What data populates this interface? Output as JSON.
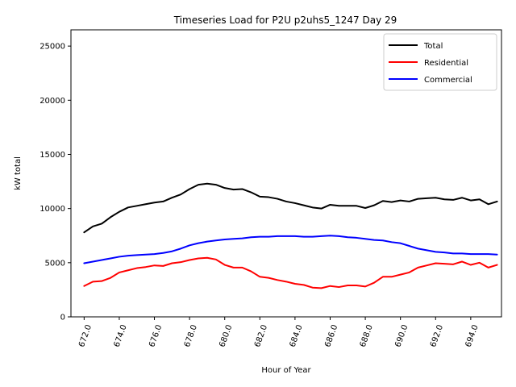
{
  "chart_data": {
    "type": "line",
    "title": "Timeseries Load for P2U p2uhs5_1247  Day 29",
    "xlabel": "Hour of Year",
    "ylabel": "kW total",
    "xlim": [
      671.25,
      695.75
    ],
    "ylim": [
      0,
      26500
    ],
    "xticks": [
      672,
      674,
      676,
      678,
      680,
      682,
      684,
      686,
      688,
      690,
      692,
      694
    ],
    "xtick_labels": [
      "672.0",
      "674.0",
      "676.0",
      "678.0",
      "680.0",
      "682.0",
      "684.0",
      "686.0",
      "688.0",
      "690.0",
      "692.0",
      "694.0"
    ],
    "yticks": [
      0,
      5000,
      10000,
      15000,
      20000,
      25000
    ],
    "ytick_labels": [
      "0",
      "5000",
      "10000",
      "15000",
      "20000",
      "25000"
    ],
    "legend_position": "top-right",
    "grid": false,
    "series": [
      {
        "name": "Total",
        "color": "#000000",
        "points": [
          [
            672.0,
            7800
          ],
          [
            672.5,
            8350
          ],
          [
            673.0,
            8600
          ],
          [
            673.5,
            9200
          ],
          [
            674.0,
            9700
          ],
          [
            674.5,
            10100
          ],
          [
            675.0,
            10250
          ],
          [
            675.5,
            10400
          ],
          [
            676.0,
            10550
          ],
          [
            676.5,
            10650
          ],
          [
            677.0,
            11000
          ],
          [
            677.5,
            11300
          ],
          [
            678.0,
            11800
          ],
          [
            678.5,
            12200
          ],
          [
            679.0,
            12300
          ],
          [
            679.5,
            12200
          ],
          [
            680.0,
            11900
          ],
          [
            680.5,
            11750
          ],
          [
            681.0,
            11800
          ],
          [
            681.5,
            11500
          ],
          [
            682.0,
            11100
          ],
          [
            682.5,
            11050
          ],
          [
            683.0,
            10900
          ],
          [
            683.5,
            10650
          ],
          [
            684.0,
            10500
          ],
          [
            684.5,
            10300
          ],
          [
            685.0,
            10100
          ],
          [
            685.5,
            10000
          ],
          [
            686.0,
            10350
          ],
          [
            686.5,
            10250
          ],
          [
            687.0,
            10250
          ],
          [
            687.5,
            10250
          ],
          [
            688.0,
            10050
          ],
          [
            688.5,
            10300
          ],
          [
            689.0,
            10700
          ],
          [
            689.5,
            10600
          ],
          [
            690.0,
            10750
          ],
          [
            690.5,
            10650
          ],
          [
            691.0,
            10900
          ],
          [
            691.5,
            10950
          ],
          [
            692.0,
            11000
          ],
          [
            692.5,
            10850
          ],
          [
            693.0,
            10800
          ],
          [
            693.5,
            11000
          ],
          [
            694.0,
            10750
          ],
          [
            694.5,
            10850
          ],
          [
            695.0,
            10400
          ],
          [
            695.5,
            10650
          ]
        ]
      },
      {
        "name": "Residential",
        "color": "#ff0000",
        "points": [
          [
            672.0,
            2850
          ],
          [
            672.5,
            3250
          ],
          [
            673.0,
            3300
          ],
          [
            673.5,
            3600
          ],
          [
            674.0,
            4100
          ],
          [
            674.5,
            4300
          ],
          [
            675.0,
            4500
          ],
          [
            675.5,
            4600
          ],
          [
            676.0,
            4750
          ],
          [
            676.5,
            4700
          ],
          [
            677.0,
            4950
          ],
          [
            677.5,
            5050
          ],
          [
            678.0,
            5250
          ],
          [
            678.5,
            5400
          ],
          [
            679.0,
            5450
          ],
          [
            679.5,
            5300
          ],
          [
            680.0,
            4800
          ],
          [
            680.5,
            4550
          ],
          [
            681.0,
            4550
          ],
          [
            681.5,
            4200
          ],
          [
            682.0,
            3700
          ],
          [
            682.5,
            3600
          ],
          [
            683.0,
            3400
          ],
          [
            683.5,
            3250
          ],
          [
            684.0,
            3050
          ],
          [
            684.5,
            2950
          ],
          [
            685.0,
            2700
          ],
          [
            685.5,
            2650
          ],
          [
            686.0,
            2850
          ],
          [
            686.5,
            2750
          ],
          [
            687.0,
            2900
          ],
          [
            687.5,
            2900
          ],
          [
            688.0,
            2800
          ],
          [
            688.5,
            3150
          ],
          [
            689.0,
            3700
          ],
          [
            689.5,
            3700
          ],
          [
            690.0,
            3900
          ],
          [
            690.5,
            4100
          ],
          [
            691.0,
            4550
          ],
          [
            691.5,
            4750
          ],
          [
            692.0,
            4950
          ],
          [
            692.5,
            4900
          ],
          [
            693.0,
            4850
          ],
          [
            693.5,
            5100
          ],
          [
            694.0,
            4800
          ],
          [
            694.5,
            5000
          ],
          [
            695.0,
            4550
          ],
          [
            695.5,
            4800
          ]
        ]
      },
      {
        "name": "Commercial",
        "color": "#0000ff",
        "points": [
          [
            672.0,
            4950
          ],
          [
            672.5,
            5100
          ],
          [
            673.0,
            5250
          ],
          [
            673.5,
            5400
          ],
          [
            674.0,
            5550
          ],
          [
            674.5,
            5650
          ],
          [
            675.0,
            5700
          ],
          [
            675.5,
            5750
          ],
          [
            676.0,
            5800
          ],
          [
            676.5,
            5900
          ],
          [
            677.0,
            6050
          ],
          [
            677.5,
            6300
          ],
          [
            678.0,
            6600
          ],
          [
            678.5,
            6800
          ],
          [
            679.0,
            6950
          ],
          [
            679.5,
            7050
          ],
          [
            680.0,
            7150
          ],
          [
            680.5,
            7200
          ],
          [
            681.0,
            7250
          ],
          [
            681.5,
            7350
          ],
          [
            682.0,
            7400
          ],
          [
            682.5,
            7400
          ],
          [
            683.0,
            7450
          ],
          [
            683.5,
            7450
          ],
          [
            684.0,
            7450
          ],
          [
            684.5,
            7400
          ],
          [
            685.0,
            7400
          ],
          [
            685.5,
            7450
          ],
          [
            686.0,
            7500
          ],
          [
            686.5,
            7450
          ],
          [
            687.0,
            7350
          ],
          [
            687.5,
            7300
          ],
          [
            688.0,
            7200
          ],
          [
            688.5,
            7100
          ],
          [
            689.0,
            7050
          ],
          [
            689.5,
            6900
          ],
          [
            690.0,
            6800
          ],
          [
            690.5,
            6550
          ],
          [
            691.0,
            6300
          ],
          [
            691.5,
            6150
          ],
          [
            692.0,
            6000
          ],
          [
            692.5,
            5950
          ],
          [
            693.0,
            5850
          ],
          [
            693.5,
            5850
          ],
          [
            694.0,
            5800
          ],
          [
            694.5,
            5800
          ],
          [
            695.0,
            5800
          ],
          [
            695.5,
            5750
          ]
        ]
      }
    ]
  }
}
